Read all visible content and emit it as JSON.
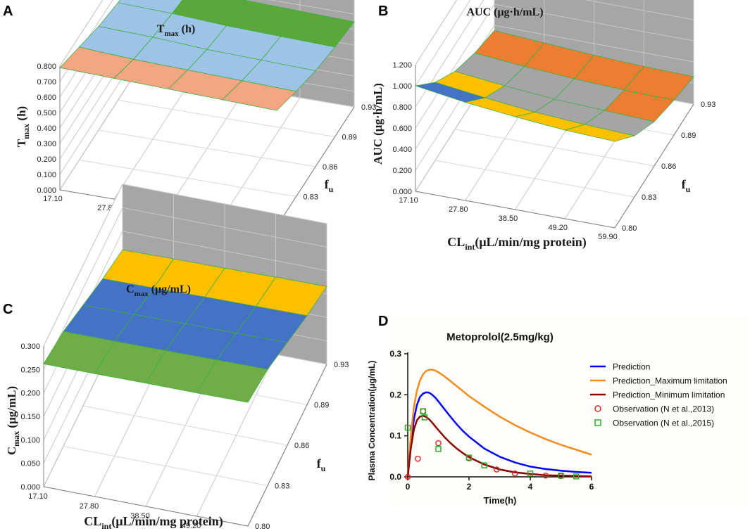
{
  "panel_letters": [
    "A",
    "B",
    "C",
    "D"
  ],
  "common": {
    "cl_label": "CL",
    "cl_sub": "int",
    "cl_unit": "(μL/min/mg protein)",
    "fu_label": "f",
    "fu_sub": "u",
    "cl_ticks": [
      "17.10",
      "27.80",
      "38.50",
      "49.20",
      "59.90"
    ],
    "fu_ticks": [
      "0.80",
      "0.83",
      "0.86",
      "0.89",
      "0.93"
    ]
  },
  "chart_data": [
    {
      "type": "surface3d",
      "panel": "A",
      "title_main": "T",
      "title_sub": "max",
      "title_unit": " (h)",
      "zlabel_main": "T",
      "zlabel_sub": "max",
      "zlabel_unit": " (h)",
      "zlim": [
        0,
        0.8
      ],
      "z_ticks": [
        "0.000",
        "0.100",
        "0.200",
        "0.300",
        "0.400",
        "0.500",
        "0.600",
        "0.700",
        "0.800"
      ],
      "bands": [
        {
          "range": "0.7-0.8",
          "color": "#f4a582"
        },
        {
          "range": "0.6-0.7",
          "color": "#9dc3e6"
        },
        {
          "range": "0.5-0.6",
          "color": "#5aa83a"
        }
      ],
      "grid_values": [
        [
          0.79,
          0.78,
          0.77,
          0.76,
          0.75
        ],
        [
          0.73,
          0.71,
          0.7,
          0.69,
          0.68
        ],
        [
          0.67,
          0.66,
          0.64,
          0.63,
          0.62
        ],
        [
          0.63,
          0.62,
          0.6,
          0.59,
          0.58
        ],
        [
          0.6,
          0.59,
          0.57,
          0.56,
          0.55
        ]
      ]
    },
    {
      "type": "surface3d",
      "panel": "B",
      "title_main": "AUC",
      "title_sub": "",
      "title_unit": "  (μg·h/mL)",
      "zlabel_main": "AUC",
      "zlabel_sub": "",
      "zlabel_unit": " (μg·h/mL)",
      "zlim": [
        0,
        1.2
      ],
      "z_ticks": [
        "0.000",
        "0.200",
        "0.400",
        "0.600",
        "0.800",
        "1.000",
        "1.200"
      ],
      "bands": [
        {
          "range": "0.8-1.0",
          "color": "#4472c4"
        },
        {
          "range": "0.6-0.8",
          "color": "#ffc000"
        },
        {
          "range": "0.4-0.6",
          "color": "#a5a5a5"
        },
        {
          "range": "0.2-0.4",
          "color": "#ed7d31"
        }
      ],
      "grid_values": [
        [
          1.0,
          0.93,
          0.88,
          0.84,
          0.82
        ],
        [
          0.74,
          0.68,
          0.63,
          0.6,
          0.58
        ],
        [
          0.55,
          0.5,
          0.46,
          0.44,
          0.42
        ],
        [
          0.43,
          0.39,
          0.36,
          0.34,
          0.33
        ],
        [
          0.35,
          0.32,
          0.29,
          0.27,
          0.26
        ]
      ]
    },
    {
      "type": "surface3d",
      "panel": "C",
      "title_main": "C",
      "title_sub": "max",
      "title_unit": " (μg/mL)",
      "zlabel_main": "C",
      "zlabel_sub": "max",
      "zlabel_unit": " (μg/mL)",
      "zlim": [
        0,
        0.3
      ],
      "z_ticks": [
        "0.000",
        "0.050",
        "0.100",
        "0.150",
        "0.200",
        "0.250",
        "0.300"
      ],
      "bands": [
        {
          "range": "0.25-0.30",
          "color": "#70ad47"
        },
        {
          "range": "0.20-0.25",
          "color": "#4472c4"
        },
        {
          "range": "0.15-0.20",
          "color": "#ffc000"
        },
        {
          "range": "0.10-0.15",
          "color": "#a5a5a5"
        }
      ],
      "grid_values": [
        [
          0.262,
          0.262,
          0.263,
          0.263,
          0.264
        ],
        [
          0.245,
          0.245,
          0.246,
          0.247,
          0.248
        ],
        [
          0.215,
          0.216,
          0.217,
          0.218,
          0.219
        ],
        [
          0.185,
          0.186,
          0.188,
          0.189,
          0.19
        ],
        [
          0.16,
          0.162,
          0.163,
          0.165,
          0.166
        ]
      ]
    },
    {
      "type": "line",
      "panel": "D",
      "title": "Metoprolol(2.5mg/kg)",
      "xlabel": "Time(h)",
      "ylabel": "Plasma Concentration(μg/mL)",
      "xlim": [
        0,
        6
      ],
      "ylim": [
        0,
        0.3
      ],
      "x_ticks": [
        "0",
        "2",
        "4",
        "6"
      ],
      "y_ticks": [
        "0.0",
        "0.1",
        "0.2",
        "0.3"
      ],
      "series": [
        {
          "name": "Prediction",
          "kind": "line",
          "color": "#0000ff",
          "x": [
            0,
            0.1,
            0.2,
            0.3,
            0.4,
            0.5,
            0.6,
            0.7,
            0.8,
            0.9,
            1.0,
            1.2,
            1.4,
            1.6,
            1.8,
            2.0,
            2.5,
            3.0,
            3.5,
            4.0,
            4.5,
            5.0,
            5.5,
            6.0
          ],
          "y": [
            0,
            0.08,
            0.14,
            0.175,
            0.195,
            0.203,
            0.206,
            0.205,
            0.2,
            0.193,
            0.184,
            0.165,
            0.146,
            0.128,
            0.112,
            0.098,
            0.069,
            0.049,
            0.035,
            0.025,
            0.019,
            0.015,
            0.012,
            0.01
          ]
        },
        {
          "name": "Prediction_Maximum limitation",
          "kind": "line",
          "color": "#f28c1c",
          "x": [
            0,
            0.1,
            0.2,
            0.3,
            0.4,
            0.5,
            0.6,
            0.7,
            0.8,
            0.9,
            1.0,
            1.2,
            1.4,
            1.6,
            1.8,
            2.0,
            2.5,
            3.0,
            3.5,
            4.0,
            4.5,
            5.0,
            5.5,
            6.0
          ],
          "y": [
            0,
            0.1,
            0.17,
            0.21,
            0.235,
            0.25,
            0.258,
            0.261,
            0.261,
            0.259,
            0.255,
            0.245,
            0.233,
            0.221,
            0.209,
            0.197,
            0.171,
            0.147,
            0.126,
            0.108,
            0.092,
            0.078,
            0.066,
            0.054
          ]
        },
        {
          "name": "Prediction_Minimum limitation",
          "kind": "line",
          "color": "#8b0000",
          "x": [
            0,
            0.1,
            0.2,
            0.3,
            0.4,
            0.5,
            0.6,
            0.7,
            0.8,
            0.9,
            1.0,
            1.2,
            1.4,
            1.6,
            1.8,
            2.0,
            2.5,
            3.0,
            3.5,
            4.0,
            4.5,
            5.0,
            5.5,
            6.0
          ],
          "y": [
            0,
            0.07,
            0.115,
            0.138,
            0.147,
            0.149,
            0.146,
            0.14,
            0.132,
            0.123,
            0.114,
            0.097,
            0.082,
            0.069,
            0.058,
            0.048,
            0.03,
            0.018,
            0.011,
            0.007,
            0.004,
            0.003,
            0.002,
            0.001
          ]
        },
        {
          "name": "Observation (N et al.,2013)",
          "kind": "circle",
          "color": "#e02020",
          "x": [
            0,
            0.33,
            0.5,
            1.0,
            2.0,
            2.9,
            3.5,
            4.5,
            5.0
          ],
          "y": [
            0,
            0.044,
            0.16,
            0.082,
            0.045,
            0.018,
            0.008,
            0.003,
            0.002
          ]
        },
        {
          "name": "Observation (N et al.,2015)",
          "kind": "square",
          "color": "#22aa22",
          "x": [
            0,
            0.5,
            0.55,
            1.0,
            2.0,
            2.5,
            4.0,
            5.0,
            5.5
          ],
          "y": [
            0.12,
            0.16,
            0.145,
            0.068,
            0.047,
            0.028,
            0.008,
            0.003,
            0.001
          ]
        }
      ]
    }
  ]
}
